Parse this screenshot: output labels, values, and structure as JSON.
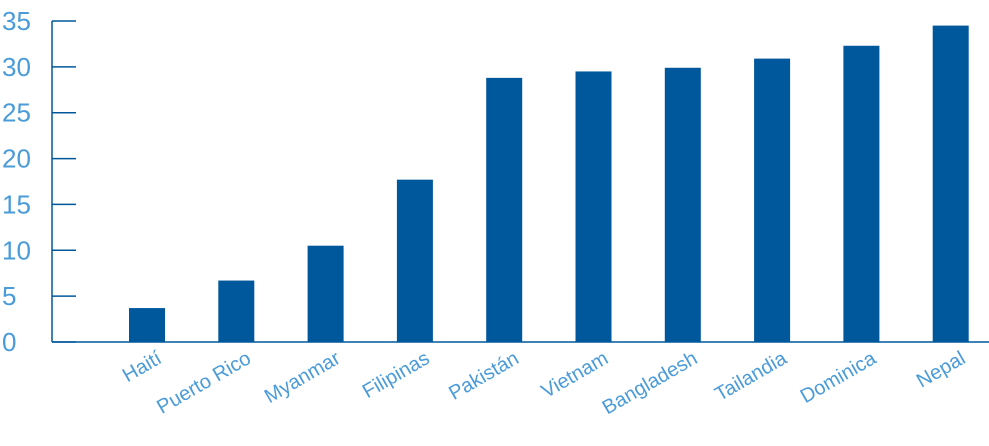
{
  "chart_data": {
    "type": "bar",
    "title": "",
    "xlabel": "",
    "ylabel": "",
    "categories": [
      "Haití",
      "Puerto Rico",
      "Myanmar",
      "Filipinas",
      "Pakistán",
      "Vietnam",
      "Bangladesh",
      "Tailandia",
      "Dominica",
      "Nepal"
    ],
    "values": [
      3.7,
      6.7,
      10.5,
      17.7,
      28.8,
      29.5,
      29.9,
      30.9,
      32.3,
      34.5
    ],
    "ylim": [
      0,
      35
    ],
    "yticks": [
      0,
      5,
      10,
      15,
      20,
      25,
      30,
      35
    ],
    "grid": false,
    "legend": "none",
    "colors": {
      "bar": "#00589C",
      "axis": "#00589C",
      "tick_label": "#4A9BD9"
    }
  }
}
